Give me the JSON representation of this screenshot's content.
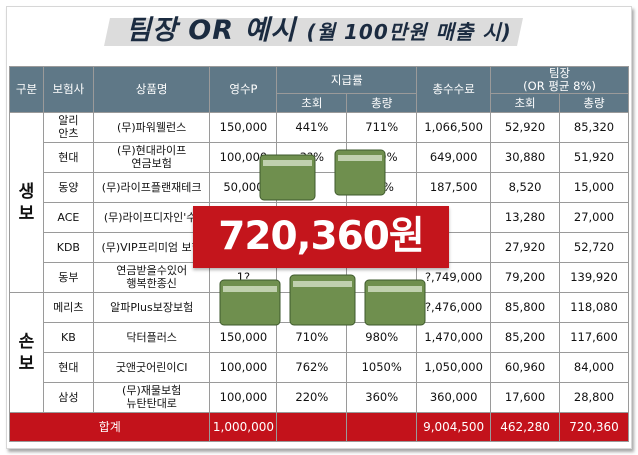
{
  "title": "팀장 OR 예시",
  "subtitle": "(월 100만원 매출 시)",
  "headers": {
    "group": "구분",
    "insurer": "보험사",
    "product": "상품명",
    "premium": "영수P",
    "payout": "지급률",
    "payout_first": "초회",
    "payout_total": "총량",
    "total_commission": "총수수료",
    "leader": "팀장",
    "leader_note": "(OR 평균 8%)",
    "leader_first": "초회",
    "leader_total": "총량"
  },
  "groups": {
    "life": "생\n보",
    "nonlife": "손\n보"
  },
  "rows": [
    {
      "insurer": "알리\n안츠",
      "product": "(무)파워웰런스",
      "premium": "150,000",
      "first": "441%",
      "total": "711%",
      "commission": "1,066,500",
      "leader_first": "52,920",
      "leader_total": "85,320"
    },
    {
      "insurer": "현대",
      "product": "(무)현대라이프\n연금보험",
      "premium": "100,000",
      "first": "3?%",
      "total": "?49%",
      "commission": "649,000",
      "leader_first": "30,880",
      "leader_total": "51,920"
    },
    {
      "insurer": "동양",
      "product": "(무)라이프플랜재테크",
      "premium": "50,000",
      "first": "",
      "total": "?5%",
      "commission": "187,500",
      "leader_first": "8,520",
      "leader_total": "15,000"
    },
    {
      "insurer": "ACE",
      "product": "(무)라이프디자인'수'",
      "premium": "",
      "first": "",
      "total": "",
      "commission": "",
      "leader_first": "13,280",
      "leader_total": "27,000"
    },
    {
      "insurer": "KDB",
      "product": "(무)VIP프리미엄 보험",
      "premium": "",
      "first": "",
      "total": "",
      "commission": "",
      "leader_first": "27,920",
      "leader_total": "52,720"
    },
    {
      "insurer": "동부",
      "product": "연금받을수있어\n행복한종신",
      "premium": "1?",
      "first": "",
      "total": "",
      "commission": "?,749,000",
      "leader_first": "79,200",
      "leader_total": "139,920"
    },
    {
      "insurer": "메리츠",
      "product": "알파Plus보장보험",
      "premium": "",
      "first": "",
      "total": "",
      "commission": "?,476,000",
      "leader_first": "85,800",
      "leader_total": "118,080"
    },
    {
      "insurer": "KB",
      "product": "닥터플러스",
      "premium": "150,000",
      "first": "710%",
      "total": "980%",
      "commission": "1,470,000",
      "leader_first": "85,200",
      "leader_total": "117,600"
    },
    {
      "insurer": "현대",
      "product": "굿앤굿어린이CI",
      "premium": "100,000",
      "first": "762%",
      "total": "1050%",
      "commission": "1,050,000",
      "leader_first": "60,960",
      "leader_total": "84,000"
    },
    {
      "insurer": "삼성",
      "product": "(무)재물보험\n뉴탄탄대로",
      "premium": "100,000",
      "first": "220%",
      "total": "360%",
      "commission": "360,000",
      "leader_first": "17,600",
      "leader_total": "28,800"
    }
  ],
  "footer": {
    "label": "합계",
    "premium": "1,000,000",
    "commission": "9,004,500",
    "leader_first": "462,280",
    "leader_total": "720,360"
  },
  "banner": "720,360원",
  "colors": {
    "header": "#5f7887",
    "accent": "#c4151c",
    "footer": "#c3121b"
  }
}
